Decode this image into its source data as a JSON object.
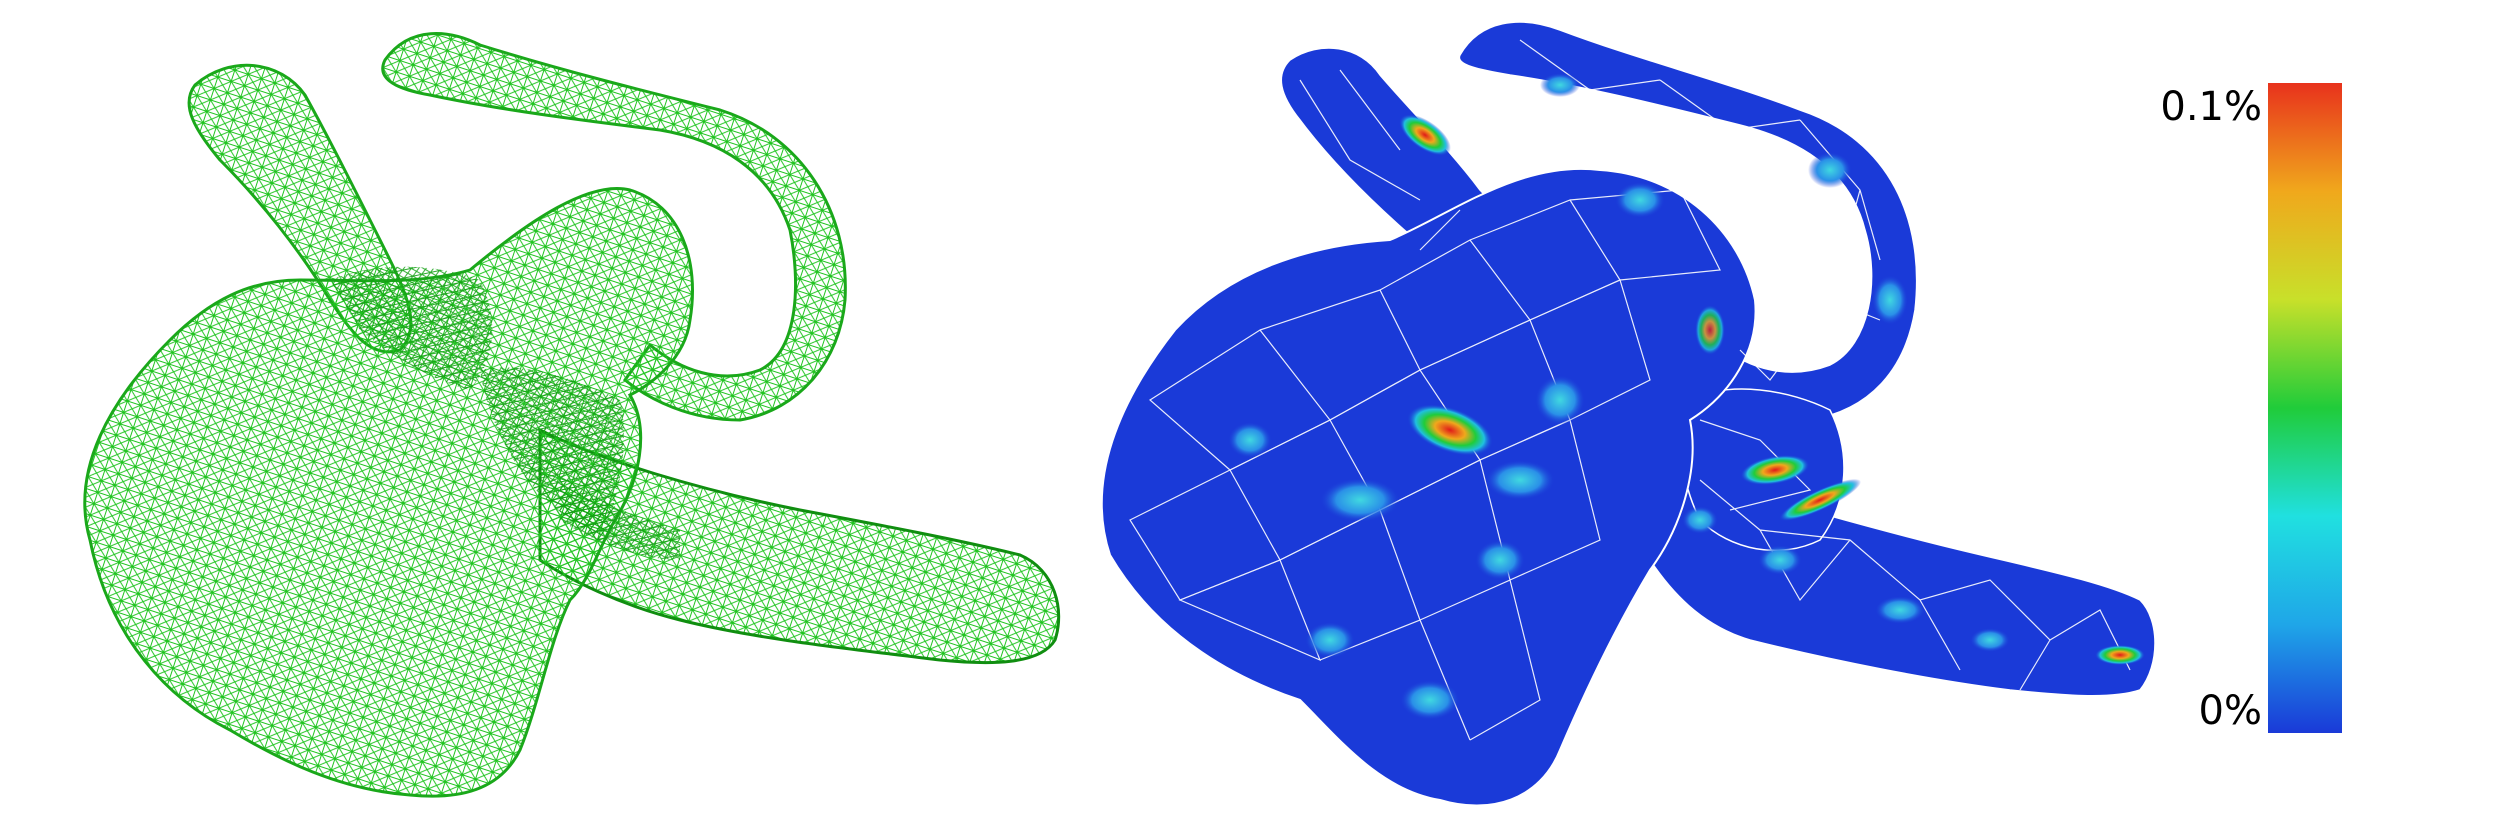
{
  "panels": {
    "left": {
      "render": "wireframe",
      "mesh_color": "#1fc41f"
    },
    "right": {
      "render": "error-colormap",
      "edge_color": "#ffffff",
      "base_color": "#1a3ad8",
      "hotspot_color": "#e01a1a"
    }
  },
  "colorbar": {
    "max_label": "0.1%",
    "min_label": "0%",
    "stops": [
      "#1a3ad8",
      "#1fa6e8",
      "#20e0e0",
      "#20cc3a",
      "#c8e02a",
      "#f0a81c",
      "#e8321c"
    ]
  }
}
